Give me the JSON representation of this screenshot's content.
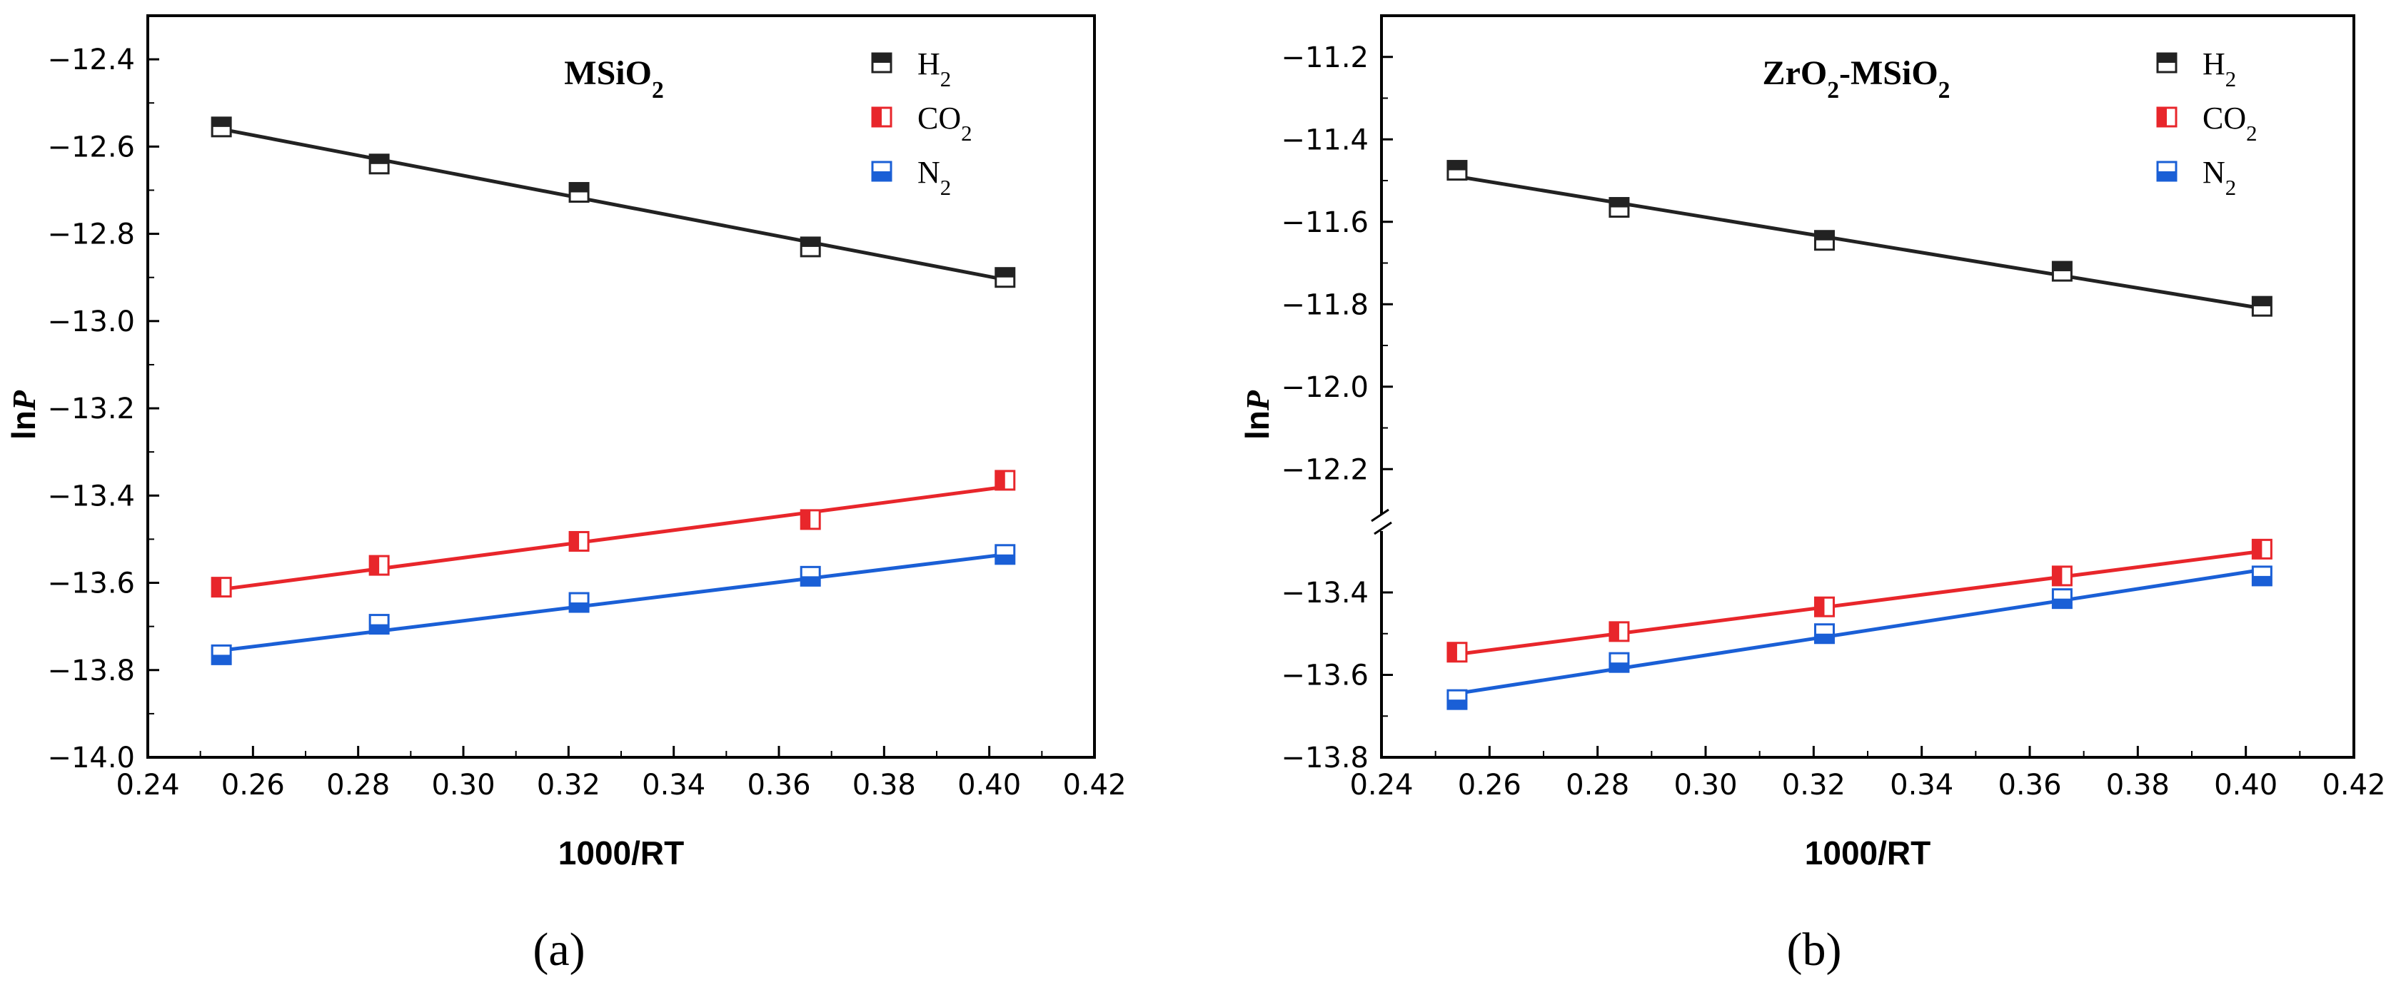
{
  "chart_data": [
    {
      "type": "scatter",
      "panel": "a",
      "panel_label": "(a)",
      "title": "MSiO₂",
      "xlabel": "1000/RT",
      "ylabel": "lnP",
      "xlim": [
        0.24,
        0.42
      ],
      "ylim": [
        -14.0,
        -12.3
      ],
      "xticks": [
        0.24,
        0.26,
        0.28,
        0.3,
        0.32,
        0.34,
        0.36,
        0.38,
        0.4,
        0.42
      ],
      "xtick_labels": [
        "0.24",
        "0.26",
        "0.28",
        "0.30",
        "0.32",
        "0.34",
        "0.36",
        "0.38",
        "0.40",
        "0.42"
      ],
      "yticks": [
        -12.4,
        -12.6,
        -12.8,
        -13.0,
        -13.2,
        -13.4,
        -13.6,
        -13.8,
        -14.0
      ],
      "ytick_labels": [
        "−12.4",
        "−12.6",
        "−12.8",
        "−13.0",
        "−13.2",
        "−13.4",
        "−13.6",
        "−13.8",
        "−14.0"
      ],
      "x": [
        0.254,
        0.284,
        0.322,
        0.366,
        0.403
      ],
      "series": [
        {
          "name": "H₂",
          "color": "#222222",
          "values": [
            -12.555,
            -12.64,
            -12.705,
            -12.83,
            -12.9
          ],
          "fit": [
            -12.56,
            -12.905
          ]
        },
        {
          "name": "CO₂",
          "color": "#e8262b",
          "values": [
            -13.61,
            -13.56,
            -13.505,
            -13.455,
            -13.365
          ],
          "fit": [
            -13.615,
            -13.38
          ]
        },
        {
          "name": "N₂",
          "color": "#1a5fd6",
          "values": [
            -13.765,
            -13.695,
            -13.645,
            -13.585,
            -13.535
          ],
          "fit": [
            -13.755,
            -13.535
          ]
        }
      ]
    },
    {
      "type": "scatter",
      "panel": "b",
      "panel_label": "(b)",
      "title": "ZrO₂-MSiO₂",
      "xlabel": "1000/RT",
      "ylabel": "lnP",
      "xlim": [
        0.24,
        0.42
      ],
      "axis_break": "between -12.2 and -13.3",
      "ylim_upper": [
        -12.3,
        -11.1
      ],
      "ylim_lower": [
        -13.8,
        -13.3
      ],
      "xticks": [
        0.24,
        0.26,
        0.28,
        0.3,
        0.32,
        0.34,
        0.36,
        0.38,
        0.4,
        0.42
      ],
      "xtick_labels": [
        "0.24",
        "0.26",
        "0.28",
        "0.30",
        "0.32",
        "0.34",
        "0.36",
        "0.38",
        "0.40",
        "0.42"
      ],
      "yticks": [
        -11.2,
        -11.4,
        -11.6,
        -11.8,
        -12.0,
        -12.2,
        -13.4,
        -13.6,
        -13.8
      ],
      "ytick_labels": [
        "−11.2",
        "−11.4",
        "−11.6",
        "−11.8",
        "−12.0",
        "−12.2",
        "−13.4",
        "−13.6",
        "−13.8"
      ],
      "x": [
        0.254,
        0.284,
        0.322,
        0.366,
        0.403
      ],
      "series": [
        {
          "name": "H₂",
          "color": "#222222",
          "values": [
            -11.475,
            -11.565,
            -11.645,
            -11.72,
            -11.805
          ],
          "fit": [
            -11.49,
            -11.81
          ]
        },
        {
          "name": "CO₂",
          "color": "#e8262b",
          "values": [
            -13.545,
            -13.495,
            -13.435,
            -13.36,
            -13.295
          ],
          "fit": [
            -13.55,
            -13.3
          ]
        },
        {
          "name": "N₂",
          "color": "#1a5fd6",
          "values": [
            -13.66,
            -13.57,
            -13.5,
            -13.415,
            -13.36
          ],
          "fit": [
            -13.645,
            -13.345
          ]
        }
      ]
    }
  ]
}
